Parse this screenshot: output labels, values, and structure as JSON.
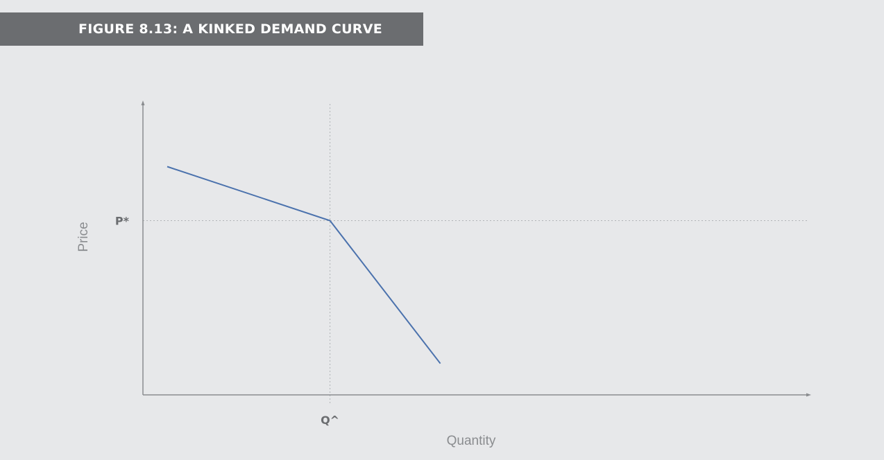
{
  "figure": {
    "title": "FIGURE 8.13: A KINKED DEMAND CURVE"
  },
  "chart_data": {
    "type": "line",
    "title": "FIGURE 8.13: A KINKED DEMAND CURVE",
    "xlabel": "Quantity",
    "ylabel": "Price",
    "xticks": [
      {
        "label": "Q^",
        "value": 1
      }
    ],
    "yticks": [
      {
        "label": "P*",
        "value": 1
      }
    ],
    "xlim": [
      0,
      3.55
    ],
    "ylim": [
      0,
      1.67
    ],
    "grid": false,
    "reference_lines": [
      {
        "orientation": "horizontal",
        "label": "P*",
        "value": 1
      },
      {
        "orientation": "vertical",
        "label": "Q^",
        "value": 1
      }
    ],
    "series": [
      {
        "points": [
          {
            "x": 0.13,
            "y": 1.31
          },
          {
            "x": 1.0,
            "y": 1.0
          },
          {
            "x": 1.59,
            "y": 0.18
          }
        ],
        "color": "#4b72ad"
      }
    ]
  }
}
